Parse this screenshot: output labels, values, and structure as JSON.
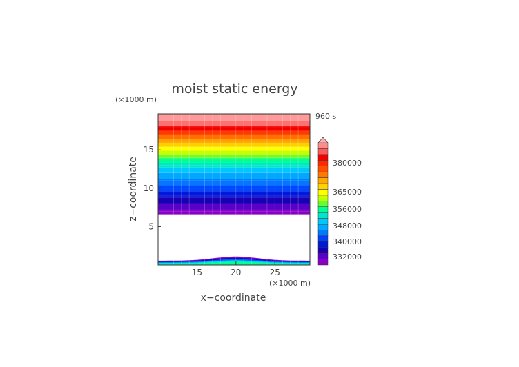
{
  "chart_data": {
    "type": "heatmap",
    "title": "moist static energy",
    "time_label": "960 s",
    "xlabel": "x−coordinate",
    "ylabel": "z−coordinate",
    "x_unit": "(×1000 m)",
    "y_unit": "(×1000 m)",
    "xlim": [
      10,
      29.5
    ],
    "ylim": [
      0,
      19.7
    ],
    "x_ticks": [
      "15",
      "20",
      "25"
    ],
    "x_tick_values": [
      15,
      20,
      25
    ],
    "y_ticks": [
      "5",
      "10",
      "15"
    ],
    "y_tick_values": [
      5,
      10,
      15
    ],
    "grid": true,
    "colorbar": {
      "ticks": [
        "380000",
        "365000",
        "356000",
        "348000",
        "340000",
        "332000"
      ],
      "extend": "max",
      "colors": [
        "#8a00c8",
        "#5a00c8",
        "#1a00b4",
        "#0018dc",
        "#0040ff",
        "#0078ff",
        "#00aaff",
        "#00c8ff",
        "#00e6c8",
        "#00ff96",
        "#64ff32",
        "#c8ff00",
        "#ffff00",
        "#ffd200",
        "#ffaa00",
        "#ff7800",
        "#ff5000",
        "#ff2800",
        "#f50000",
        "#ff5a5a",
        "#ff8c8c"
      ]
    },
    "upper_layers": [
      {
        "z_top": 19.7,
        "z_bottom": 18.8,
        "color": "#ff9a9a"
      },
      {
        "z_top": 18.8,
        "z_bottom": 18.1,
        "color": "#ff7070"
      },
      {
        "z_top": 18.1,
        "z_bottom": 17.5,
        "color": "#f20000"
      },
      {
        "z_top": 17.5,
        "z_bottom": 17.0,
        "color": "#ff3a00"
      },
      {
        "z_top": 17.0,
        "z_bottom": 16.4,
        "color": "#ff7000"
      },
      {
        "z_top": 16.4,
        "z_bottom": 15.9,
        "color": "#ffa000"
      },
      {
        "z_top": 15.9,
        "z_bottom": 15.4,
        "color": "#ffd000"
      },
      {
        "z_top": 15.4,
        "z_bottom": 14.9,
        "color": "#ffff00"
      },
      {
        "z_top": 14.9,
        "z_bottom": 14.4,
        "color": "#c8ff00"
      },
      {
        "z_top": 14.4,
        "z_bottom": 13.9,
        "color": "#6cff2e"
      },
      {
        "z_top": 13.9,
        "z_bottom": 13.3,
        "color": "#00ff96"
      },
      {
        "z_top": 13.3,
        "z_bottom": 12.7,
        "color": "#00e6c8"
      },
      {
        "z_top": 12.7,
        "z_bottom": 12.0,
        "color": "#00c8ff"
      },
      {
        "z_top": 12.0,
        "z_bottom": 11.2,
        "color": "#00a8ff"
      },
      {
        "z_top": 11.2,
        "z_bottom": 10.4,
        "color": "#0078ff"
      },
      {
        "z_top": 10.4,
        "z_bottom": 9.6,
        "color": "#0048ff"
      },
      {
        "z_top": 9.6,
        "z_bottom": 8.8,
        "color": "#0018dc"
      },
      {
        "z_top": 8.8,
        "z_bottom": 8.0,
        "color": "#1a00b4"
      },
      {
        "z_top": 8.0,
        "z_bottom": 7.2,
        "color": "#5a00c8"
      },
      {
        "z_top": 7.2,
        "z_bottom": 6.6,
        "color": "#8a00c8"
      }
    ],
    "surface_bump": {
      "center_x": 20,
      "half_width": 5,
      "height": 1.1,
      "base_height": 0.55
    }
  }
}
